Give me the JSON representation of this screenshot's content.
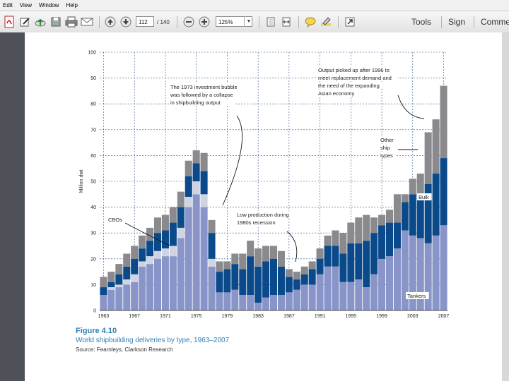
{
  "menu": {
    "items": [
      "Edit",
      "View",
      "Window",
      "Help"
    ]
  },
  "toolbar": {
    "page_current": "112",
    "page_total": "/ 140",
    "zoom": "125%",
    "tools_label": "Tools",
    "sign_label": "Sign",
    "comment_label": "Comme"
  },
  "figure": {
    "title": "Figure 4.10",
    "subtitle": "World shipbuilding deliveries by type, 1963–2007",
    "source": "Source: Fearnleys, Clarkson Research"
  },
  "chart_data": {
    "type": "bar",
    "stacked": true,
    "ylabel": "Million dwt",
    "ylim": [
      0,
      100
    ],
    "yticks": [
      0,
      10,
      20,
      30,
      40,
      50,
      60,
      70,
      80,
      90,
      100
    ],
    "xtick_labels": [
      "1963",
      "1967",
      "1971",
      "1975",
      "1979",
      "1983",
      "1987",
      "1991",
      "1995",
      "1999",
      "2003",
      "2007"
    ],
    "grid": true,
    "categories": [
      "1963",
      "1964",
      "1965",
      "1966",
      "1967",
      "1968",
      "1969",
      "1970",
      "1971",
      "1972",
      "1973",
      "1974",
      "1975",
      "1976",
      "1977",
      "1978",
      "1979",
      "1980",
      "1981",
      "1982",
      "1983",
      "1984",
      "1985",
      "1986",
      "1987",
      "1988",
      "1989",
      "1990",
      "1991",
      "1992",
      "1993",
      "1994",
      "1995",
      "1996",
      "1997",
      "1998",
      "1999",
      "2000",
      "2001",
      "2002",
      "2003",
      "2004",
      "2005",
      "2006",
      "2007"
    ],
    "series": [
      {
        "name": "Tankers",
        "color": "#8995c8",
        "values": [
          6,
          8,
          9,
          10,
          11,
          17,
          18,
          20,
          21,
          21,
          28,
          40,
          45,
          40,
          17,
          7,
          7,
          8,
          6,
          6,
          3,
          5,
          6,
          6,
          7,
          8,
          10,
          10,
          14,
          17,
          17,
          11,
          11,
          12,
          9,
          14,
          20,
          21,
          24,
          31,
          29,
          28,
          26,
          29,
          33
        ]
      },
      {
        "name": "CBOs",
        "color": "#cfd4e2",
        "values": [
          0,
          1,
          1,
          2,
          3,
          2,
          3,
          3,
          3,
          4,
          4,
          4,
          5,
          5,
          3,
          0,
          0,
          0,
          0,
          0,
          0,
          0,
          0,
          0,
          0,
          0,
          0,
          0,
          0,
          0,
          0,
          0,
          0,
          0,
          0,
          0,
          0,
          0,
          0,
          0,
          0,
          0,
          0,
          0,
          0
        ]
      },
      {
        "name": "Bulk",
        "color": "#0b4a8a",
        "values": [
          3,
          2,
          4,
          5,
          6,
          5,
          6,
          7,
          7,
          9,
          8,
          8,
          7,
          9,
          10,
          8,
          9,
          10,
          10,
          15,
          14,
          14,
          14,
          11,
          6,
          4,
          4,
          6,
          6,
          8,
          8,
          11,
          15,
          14,
          18,
          16,
          13,
          13,
          10,
          11,
          16,
          17,
          23,
          24,
          26
        ]
      },
      {
        "name": "Other ship types",
        "color": "#8a8a8e",
        "values": [
          4,
          4,
          4,
          5,
          5,
          5,
          5,
          6,
          6,
          6,
          6,
          6,
          5,
          7,
          5,
          4,
          3,
          4,
          6,
          6,
          7,
          6,
          5,
          6,
          3,
          3,
          3,
          3,
          4,
          4,
          6,
          8,
          8,
          10,
          10,
          6,
          4,
          5,
          11,
          3,
          6,
          8,
          20,
          21,
          28
        ]
      }
    ],
    "annotations": [
      "The 1973 investment bubble was followed by a collapse in shipbuilding output",
      "Output picked up after 1996 to meet replacement demand and the need of the expanding Asian economy",
      "Low production during 1980s recession",
      "CBOs",
      "Other ship types",
      "Bulk",
      "Tankers"
    ]
  }
}
